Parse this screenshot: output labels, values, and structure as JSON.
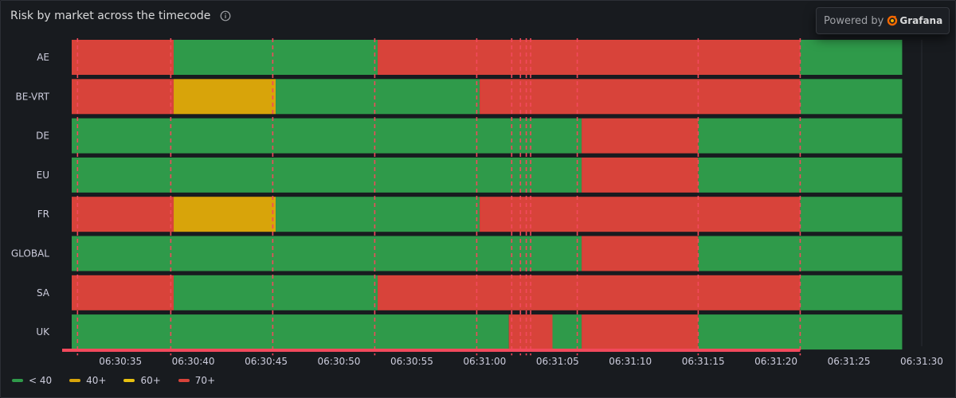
{
  "panel": {
    "title": "Risk by market across the timecode"
  },
  "powered": {
    "text": "Powered by",
    "brand": "Grafana",
    "logo_icon": "grafana-logo-icon"
  },
  "chart_data": {
    "type": "state-timeline",
    "title": "Risk by market across the timecode",
    "x_range": [
      "06:30:31",
      "06:31:30"
    ],
    "x_ticks": [
      "06:30:35",
      "06:30:40",
      "06:30:45",
      "06:30:50",
      "06:30:55",
      "06:31:00",
      "06:31:05",
      "06:31:10",
      "06:31:15",
      "06:31:20",
      "06:31:25",
      "06:31:30"
    ],
    "data_end": "06:31:28",
    "markers": [
      "06:30:31.4",
      "06:30:37.8",
      "06:30:44.8",
      "06:30:51.8",
      "06:30:58.8",
      "06:31:01.2",
      "06:31:01.8",
      "06:31:02.2",
      "06:31:02.5",
      "06:31:05.7",
      "06:31:14.0",
      "06:31:21.0"
    ],
    "highlight_range": [
      "06:30:31",
      "06:31:21"
    ],
    "legend": [
      {
        "label": "< 40",
        "color": "#2f9a4a"
      },
      {
        "label": "40+",
        "color": "#d8a40a"
      },
      {
        "label": "60+",
        "color": "#e8c110"
      },
      {
        "label": "70+",
        "color": "#d8433a"
      }
    ],
    "rows": [
      {
        "name": "AE",
        "segments": [
          {
            "start": "06:30:31",
            "end": "06:30:38",
            "level": "70+"
          },
          {
            "start": "06:30:38",
            "end": "06:30:52",
            "level": "< 40"
          },
          {
            "start": "06:30:52",
            "end": "06:31:21",
            "level": "70+"
          },
          {
            "start": "06:31:21",
            "end": "06:31:28",
            "level": "< 40"
          }
        ]
      },
      {
        "name": "BE-VRT",
        "segments": [
          {
            "start": "06:30:31",
            "end": "06:30:38",
            "level": "70+"
          },
          {
            "start": "06:30:38",
            "end": "06:30:45",
            "level": "40+"
          },
          {
            "start": "06:30:45",
            "end": "06:30:59",
            "level": "< 40"
          },
          {
            "start": "06:30:59",
            "end": "06:31:21",
            "level": "70+"
          },
          {
            "start": "06:31:21",
            "end": "06:31:28",
            "level": "< 40"
          }
        ]
      },
      {
        "name": "DE",
        "segments": [
          {
            "start": "06:30:31",
            "end": "06:31:06",
            "level": "< 40"
          },
          {
            "start": "06:31:06",
            "end": "06:31:14",
            "level": "70+"
          },
          {
            "start": "06:31:14",
            "end": "06:31:28",
            "level": "< 40"
          }
        ]
      },
      {
        "name": "EU",
        "segments": [
          {
            "start": "06:30:31",
            "end": "06:31:06",
            "level": "< 40"
          },
          {
            "start": "06:31:06",
            "end": "06:31:14",
            "level": "70+"
          },
          {
            "start": "06:31:14",
            "end": "06:31:28",
            "level": "< 40"
          }
        ]
      },
      {
        "name": "FR",
        "segments": [
          {
            "start": "06:30:31",
            "end": "06:30:38",
            "level": "70+"
          },
          {
            "start": "06:30:38",
            "end": "06:30:45",
            "level": "40+"
          },
          {
            "start": "06:30:45",
            "end": "06:30:59",
            "level": "< 40"
          },
          {
            "start": "06:30:59",
            "end": "06:31:21",
            "level": "70+"
          },
          {
            "start": "06:31:21",
            "end": "06:31:28",
            "level": "< 40"
          }
        ]
      },
      {
        "name": "GLOBAL",
        "segments": [
          {
            "start": "06:30:31",
            "end": "06:31:06",
            "level": "< 40"
          },
          {
            "start": "06:31:06",
            "end": "06:31:14",
            "level": "70+"
          },
          {
            "start": "06:31:14",
            "end": "06:31:28",
            "level": "< 40"
          }
        ]
      },
      {
        "name": "SA",
        "segments": [
          {
            "start": "06:30:31",
            "end": "06:30:38",
            "level": "70+"
          },
          {
            "start": "06:30:38",
            "end": "06:30:52",
            "level": "< 40"
          },
          {
            "start": "06:30:52",
            "end": "06:31:21",
            "level": "70+"
          },
          {
            "start": "06:31:21",
            "end": "06:31:28",
            "level": "< 40"
          }
        ]
      },
      {
        "name": "UK",
        "segments": [
          {
            "start": "06:30:31",
            "end": "06:31:01",
            "level": "< 40"
          },
          {
            "start": "06:31:01",
            "end": "06:31:04",
            "level": "70+"
          },
          {
            "start": "06:31:04",
            "end": "06:31:06",
            "level": "< 40"
          },
          {
            "start": "06:31:06",
            "end": "06:31:14",
            "level": "70+"
          },
          {
            "start": "06:31:14",
            "end": "06:31:28",
            "level": "< 40"
          }
        ]
      }
    ]
  }
}
